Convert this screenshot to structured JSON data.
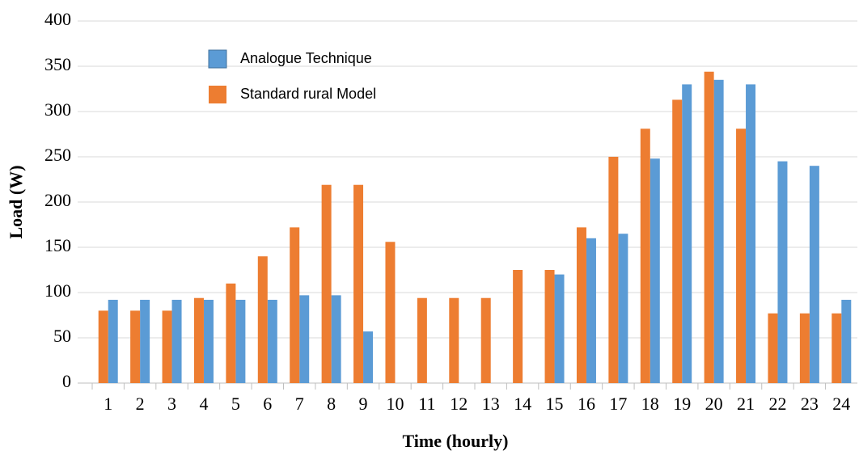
{
  "chart_data": {
    "type": "bar",
    "xlabel": "Time (hourly)",
    "ylabel": "Load (W)",
    "categories": [
      "1",
      "2",
      "3",
      "4",
      "5",
      "6",
      "7",
      "8",
      "9",
      "10",
      "11",
      "12",
      "13",
      "14",
      "15",
      "16",
      "17",
      "18",
      "19",
      "20",
      "21",
      "22",
      "23",
      "24"
    ],
    "series": [
      {
        "name": "Analogue Technique",
        "color": "#5b9bd5",
        "values": [
          92,
          92,
          92,
          92,
          92,
          92,
          97,
          97,
          57,
          0,
          0,
          0,
          0,
          0,
          120,
          160,
          165,
          248,
          330,
          335,
          330,
          245,
          240,
          92
        ]
      },
      {
        "name": "Standard rural Model",
        "color": "#ed7d31",
        "values": [
          80,
          80,
          80,
          94,
          110,
          140,
          172,
          219,
          219,
          156,
          94,
          94,
          94,
          125,
          125,
          172,
          250,
          281,
          313,
          344,
          281,
          77,
          77,
          77
        ]
      }
    ],
    "ylim": [
      0,
      400
    ],
    "yticks": [
      0,
      50,
      100,
      150,
      200,
      250,
      300,
      350,
      400
    ],
    "grid": true
  }
}
